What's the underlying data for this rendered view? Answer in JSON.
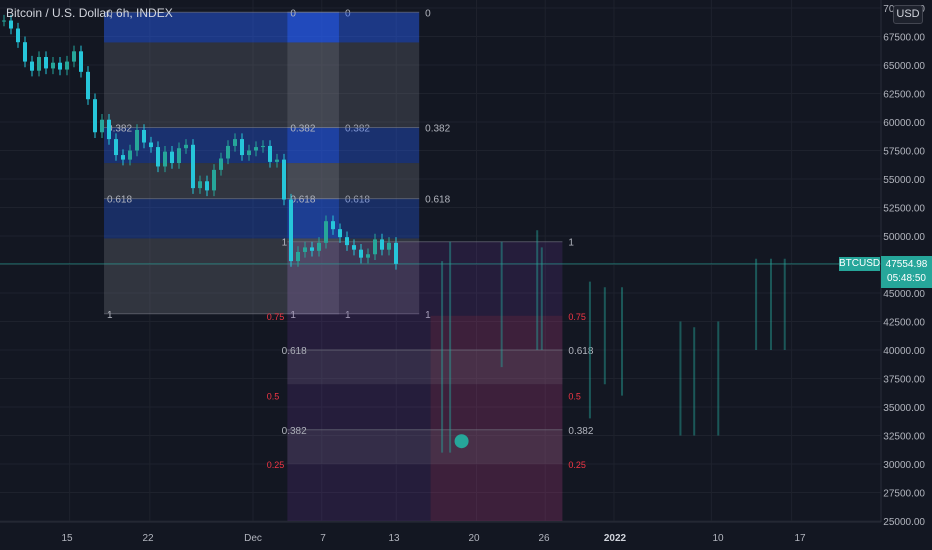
{
  "header": {
    "title": "Bitcoin / U.S. Dollar, 6h, INDEX"
  },
  "currency_button": {
    "label": "USD"
  },
  "symbol_tag": {
    "label": "BTCUSD"
  },
  "last_price": {
    "value": "47554.98",
    "countdown": "05:48:50"
  },
  "chart_data": {
    "type": "candlestick",
    "title": "Bitcoin / U.S. Dollar, 6h, INDEX",
    "y_axis": {
      "ticks": [
        "70000.00",
        "67500.00",
        "65000.00",
        "62500.00",
        "60000.00",
        "57500.00",
        "55000.00",
        "52500.00",
        "50000.00",
        "47500.00",
        "45000.00",
        "42500.00",
        "40000.00",
        "37500.00",
        "35000.00",
        "32500.00",
        "30000.00",
        "27500.00",
        "25000.00"
      ],
      "range": [
        25000,
        70000
      ]
    },
    "x_axis": {
      "ticks": [
        "15",
        "22",
        "Dec",
        "7",
        "13",
        "20",
        "26",
        "2022",
        "10",
        "17"
      ]
    },
    "close_path": [
      68900,
      68200,
      67000,
      65300,
      64500,
      65700,
      64700,
      65200,
      64600,
      65300,
      66200,
      64400,
      62000,
      59100,
      60200,
      58500,
      57100,
      56700,
      57500,
      59300,
      58200,
      57800,
      56100,
      57400,
      56400,
      57700,
      58000,
      54200,
      54800,
      54000,
      55800,
      56800,
      57900,
      58500,
      57100,
      57500,
      57800,
      57900,
      56500,
      56700,
      53200,
      47800,
      48600,
      49000,
      48700,
      49400,
      51300,
      50600,
      49900,
      49200,
      48800,
      48100,
      48400,
      49700,
      48800,
      49400,
      47554.98
    ],
    "fib_retracements": [
      {
        "levels": [
          "0",
          "0.382",
          "0.618",
          "1"
        ],
        "price_range": [
          70500,
          43000
        ],
        "x_days": [
          -13,
          7.5
        ]
      },
      {
        "levels": [
          "0",
          "0.382",
          "0.618",
          "1"
        ],
        "price_range": [
          70500,
          43000
        ],
        "x_days": [
          3,
          14.5
        ]
      }
    ],
    "fib_extension": {
      "levels": [
        "1",
        "0.618",
        "0.382"
      ],
      "minor_levels": [
        "0.75",
        "0.5",
        "0.25"
      ],
      "price_range": [
        49500,
        28500
      ],
      "x_days": [
        3,
        27
      ]
    },
    "ghost_projection": [
      [
        16.5,
        31000,
        47800
      ],
      [
        17.2,
        31000,
        49500
      ],
      [
        21.7,
        38500,
        49500
      ],
      [
        24.8,
        40000,
        50500
      ],
      [
        25.2,
        40000,
        49000
      ],
      [
        29.4,
        34000,
        46000
      ],
      [
        30.7,
        37000,
        45500
      ],
      [
        32.2,
        36000,
        45500
      ],
      [
        37.3,
        32500,
        42500
      ],
      [
        38.5,
        32500,
        42000
      ],
      [
        40.6,
        32500,
        42500
      ],
      [
        43.9,
        40000,
        48000
      ],
      [
        45.2,
        40000,
        48000
      ],
      [
        46.4,
        40000,
        48000
      ]
    ],
    "ghost_marker": {
      "x_days": 18.2,
      "price": 32000
    }
  },
  "colors": {
    "up": "#26a69a",
    "down": "#26c6da",
    "fib_blue": "#2962ff",
    "fib_red": "#f23645",
    "background": "#131722"
  },
  "icons": {
    "marker": "teal-circle"
  }
}
